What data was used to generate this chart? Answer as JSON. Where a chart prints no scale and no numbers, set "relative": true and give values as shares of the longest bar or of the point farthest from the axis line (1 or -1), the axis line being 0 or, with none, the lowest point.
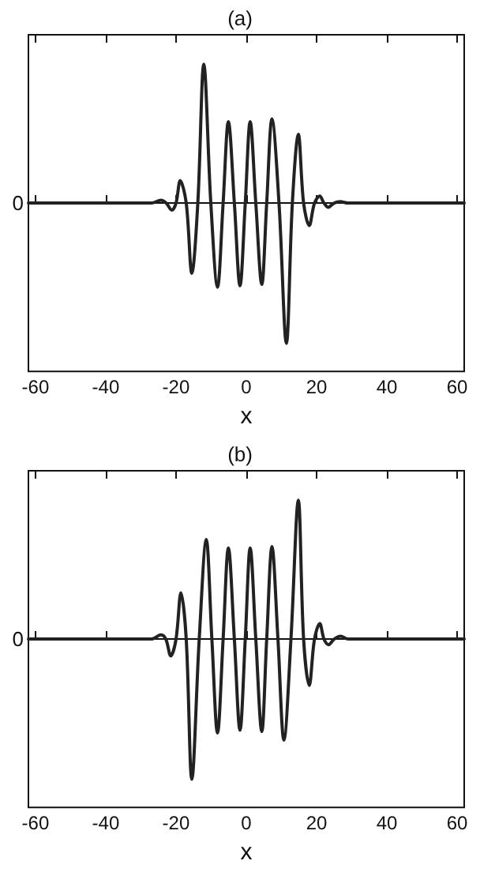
{
  "chart_data": [
    {
      "type": "line",
      "title": "(a)",
      "xlabel": "x",
      "relative": true,
      "xlim": [
        -62,
        62
      ],
      "xticks": [
        -60,
        -40,
        -20,
        0,
        20,
        40,
        60
      ],
      "marker": "none",
      "line_style": "solid",
      "annotations": [
        "0"
      ],
      "series": [
        {
          "color": "#222222",
          "x": [
            -62,
            -30,
            -27,
            -24.3,
            -22.8,
            -21.2,
            -20,
            -18.8,
            -17.1,
            -15.5,
            -13.8,
            -12.1,
            -10.1,
            -8.2,
            -6.6,
            -5.1,
            -3.4,
            -1.8,
            -0.3,
            1.1,
            2.7,
            4.4,
            5.8,
            7.3,
            9.3,
            11.4,
            13.1,
            14.8,
            16.3,
            17.9,
            19.4,
            20.9,
            22.1,
            23.3,
            25,
            26.7,
            29,
            62
          ],
          "values": [
            0,
            0,
            0,
            0.02,
            0,
            -0.05,
            0,
            0.16,
            0,
            -0.5,
            0,
            0.99,
            0,
            -0.6,
            0,
            0.58,
            0,
            -0.59,
            0,
            0.58,
            0,
            -0.58,
            0,
            0.6,
            0,
            -1,
            0,
            0.49,
            0,
            -0.16,
            0,
            0.05,
            0,
            -0.03,
            0,
            0.01,
            0,
            0
          ]
        }
      ]
    },
    {
      "type": "line",
      "title": "(b)",
      "xlabel": "x",
      "relative": true,
      "xlim": [
        -62,
        62
      ],
      "xticks": [
        -60,
        -40,
        -20,
        0,
        20,
        40,
        60
      ],
      "marker": "none",
      "line_style": "solid",
      "annotations": [
        "0"
      ],
      "series": [
        {
          "color": "#222222",
          "x": [
            -62,
            -30,
            -27,
            -24.3,
            -22.9,
            -21.5,
            -20,
            -18.6,
            -17.1,
            -15.5,
            -13.4,
            -11.4,
            -9.8,
            -8.2,
            -6.6,
            -5.1,
            -3.4,
            -1.8,
            -0.3,
            1.1,
            2.7,
            4.4,
            5.8,
            7.3,
            9,
            10.7,
            12.7,
            14.8,
            16.3,
            17.9,
            19.4,
            20.9,
            22.1,
            23.4,
            25,
            26.8,
            29,
            62
          ],
          "values": [
            0,
            0,
            0,
            0.03,
            0,
            -0.12,
            0,
            0.33,
            0,
            -1,
            0,
            0.71,
            0,
            -0.67,
            0,
            0.65,
            0,
            -0.65,
            0,
            0.65,
            0,
            -0.66,
            0,
            0.66,
            0,
            -0.72,
            0,
            0.99,
            0,
            -0.33,
            0,
            0.11,
            0,
            -0.04,
            0,
            0.02,
            0,
            0
          ]
        }
      ]
    }
  ]
}
